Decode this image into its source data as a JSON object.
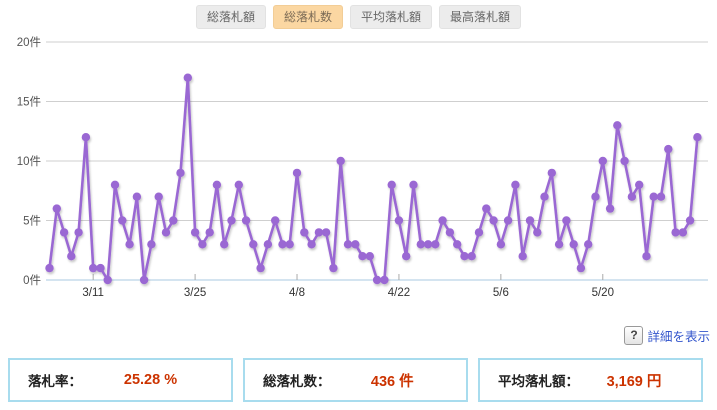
{
  "tabs": {
    "items": [
      {
        "label": "総落札額",
        "selected": false
      },
      {
        "label": "総落札数",
        "selected": true
      },
      {
        "label": "平均落札額",
        "selected": false
      },
      {
        "label": "最高落札額",
        "selected": false
      }
    ]
  },
  "detail": {
    "help_glyph": "?",
    "link_label": "詳細を表示"
  },
  "stats": {
    "items": [
      {
        "label": "落札率：",
        "value": "25.28 %"
      },
      {
        "label": "総落札数：",
        "value": "436 件"
      },
      {
        "label": "平均落札額：",
        "value": "3,169 円"
      }
    ]
  },
  "colors": {
    "line": "#9a67d3",
    "selected_tab_bg": "#fbd7a2",
    "stat_value_text": "#cc3300",
    "stat_box_border": "#a8dcee",
    "gridline": "#cfcfcf",
    "x_axis": "#a9c9e0"
  },
  "chart_data": {
    "type": "line",
    "series_name": "総落札数",
    "y_unit": "件",
    "ylim": [
      0,
      20
    ],
    "y_ticks": [
      0,
      5,
      10,
      15,
      20
    ],
    "x_ticks": [
      {
        "label": "3/11",
        "index": 6
      },
      {
        "label": "3/25",
        "index": 20
      },
      {
        "label": "4/8",
        "index": 34
      },
      {
        "label": "4/22",
        "index": 48
      },
      {
        "label": "5/6",
        "index": 62
      },
      {
        "label": "5/20",
        "index": 76
      }
    ],
    "grid": true,
    "legend_position": "none",
    "values": [
      1,
      6,
      4,
      2,
      4,
      12,
      1,
      1,
      0,
      8,
      5,
      3,
      7,
      0,
      3,
      7,
      4,
      5,
      9,
      17,
      4,
      3,
      4,
      8,
      3,
      5,
      8,
      5,
      3,
      1,
      3,
      5,
      3,
      3,
      9,
      4,
      3,
      4,
      4,
      1,
      10,
      3,
      3,
      2,
      2,
      0,
      0,
      8,
      5,
      2,
      8,
      3,
      3,
      3,
      5,
      4,
      3,
      2,
      2,
      4,
      6,
      5,
      3,
      5,
      8,
      2,
      5,
      4,
      7,
      9,
      3,
      5,
      3,
      1,
      3,
      7,
      10,
      6,
      13,
      10,
      7,
      8,
      2,
      7,
      7,
      11,
      4,
      4,
      5,
      12
    ],
    "values_total": 436
  }
}
